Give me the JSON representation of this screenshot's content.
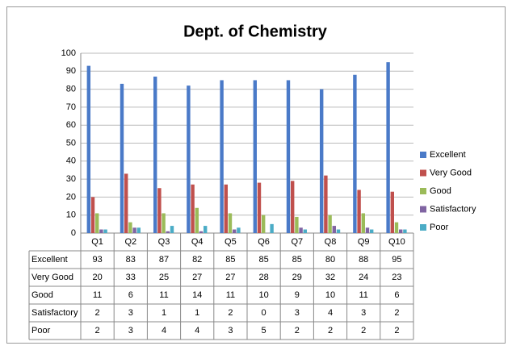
{
  "chart_data": {
    "type": "bar",
    "title": "Dept. of Chemistry",
    "categories": [
      "Q1",
      "Q2",
      "Q3",
      "Q4",
      "Q5",
      "Q6",
      "Q7",
      "Q8",
      "Q9",
      "Q10"
    ],
    "series": [
      {
        "name": "Excellent",
        "color": "#4a7ac8",
        "values": [
          93,
          83,
          87,
          82,
          85,
          85,
          85,
          80,
          88,
          95
        ]
      },
      {
        "name": "Very Good",
        "color": "#c0504d",
        "values": [
          20,
          33,
          25,
          27,
          27,
          28,
          29,
          32,
          24,
          23
        ]
      },
      {
        "name": "Good",
        "color": "#9bbb59",
        "values": [
          11,
          6,
          11,
          14,
          11,
          10,
          9,
          10,
          11,
          6
        ]
      },
      {
        "name": "Satisfactory",
        "color": "#8064a2",
        "values": [
          2,
          3,
          1,
          1,
          2,
          0,
          3,
          4,
          3,
          2
        ]
      },
      {
        "name": "Poor",
        "color": "#4bacc6",
        "values": [
          2,
          3,
          4,
          4,
          3,
          5,
          2,
          2,
          2,
          2
        ]
      }
    ],
    "ylim": [
      0,
      100
    ],
    "yticks": [
      0,
      10,
      20,
      30,
      40,
      50,
      60,
      70,
      80,
      90,
      100
    ],
    "grid": true,
    "legend": "right"
  }
}
